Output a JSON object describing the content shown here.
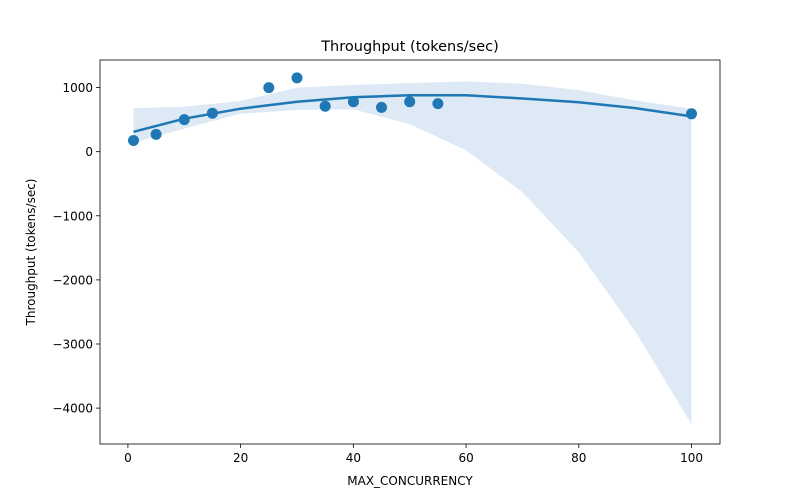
{
  "chart_data": {
    "type": "scatter",
    "title": "Throughput (tokens/sec)",
    "xlabel": "MAX_CONCURRENCY",
    "ylabel": "Throughput (tokens/sec)",
    "xlim": [
      -4.95,
      105.05
    ],
    "ylim": [
      -4560,
      1430
    ],
    "xticks": [
      0,
      20,
      40,
      60,
      80,
      100
    ],
    "yticks": [
      -4000,
      -3000,
      -2000,
      -1000,
      0,
      1000
    ],
    "grid": false,
    "legend": "none",
    "points": {
      "x": [
        1,
        5,
        10,
        15,
        25,
        30,
        35,
        40,
        45,
        50,
        55,
        100
      ],
      "y": [
        175,
        270,
        500,
        600,
        1000,
        1150,
        710,
        780,
        690,
        780,
        750,
        590
      ]
    },
    "fit_line": {
      "kind": "quadratic regression",
      "x": [
        1,
        10,
        20,
        30,
        40,
        50,
        60,
        70,
        80,
        90,
        100
      ],
      "y": [
        310,
        515,
        670,
        780,
        850,
        880,
        880,
        830,
        770,
        680,
        550
      ]
    },
    "confidence_band": {
      "x": [
        1,
        10,
        20,
        30,
        40,
        50,
        60,
        70,
        80,
        90,
        100
      ],
      "upper": [
        680,
        700,
        790,
        1000,
        1040,
        1070,
        1095,
        1060,
        960,
        800,
        670
      ],
      "lower": [
        140,
        360,
        590,
        650,
        660,
        430,
        20,
        -630,
        -1570,
        -2800,
        -4250
      ]
    },
    "colors": {
      "marker": "#1f77b4",
      "line": "#1f77b4",
      "band": "#c6dbef"
    }
  }
}
